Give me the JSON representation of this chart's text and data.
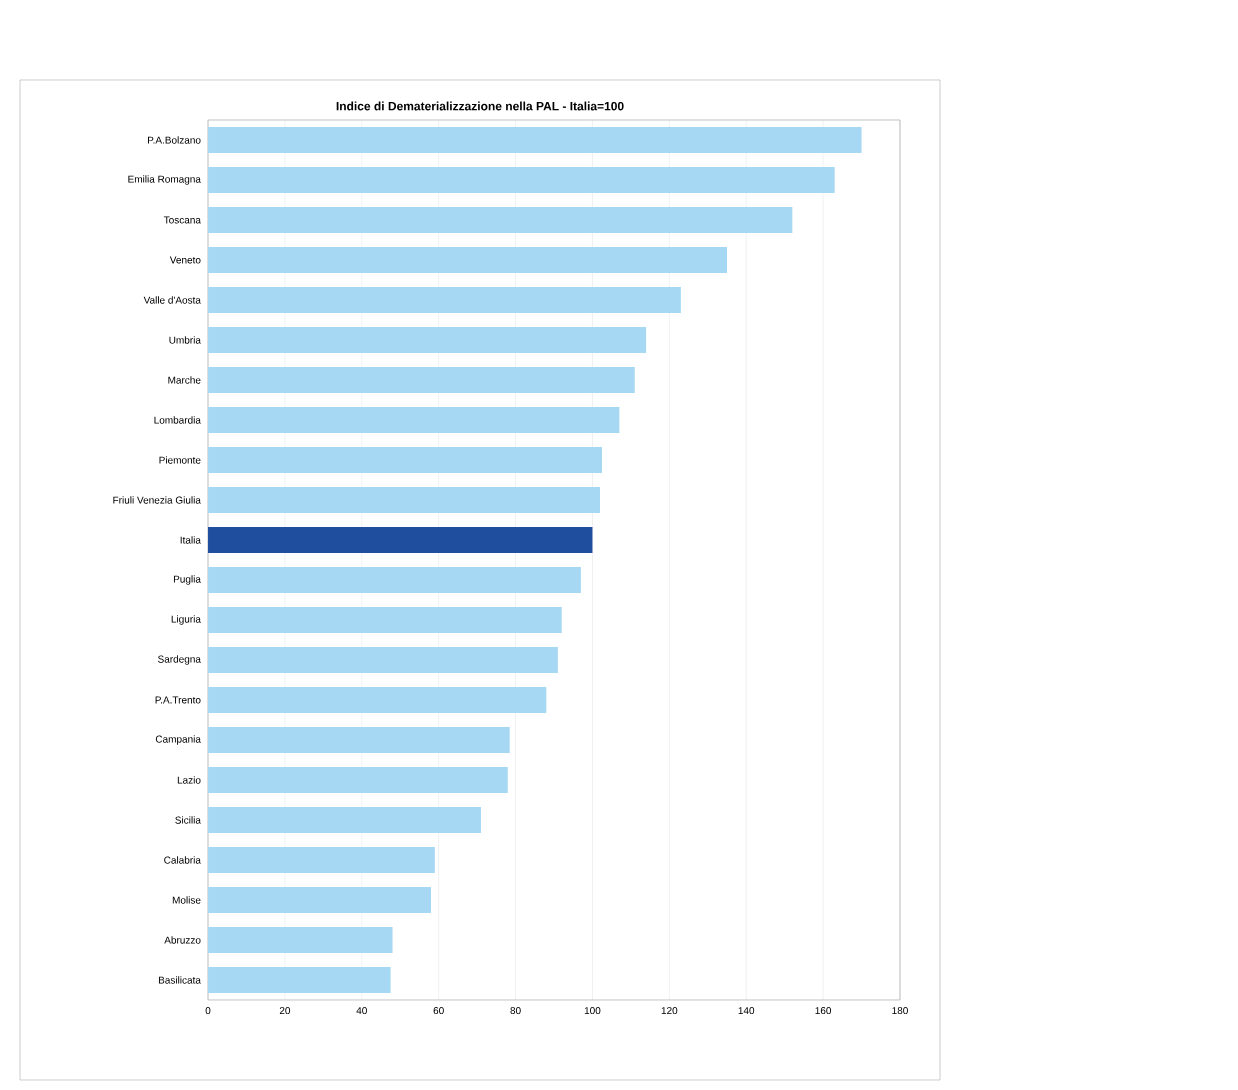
{
  "chart_data": {
    "type": "bar",
    "orientation": "horizontal",
    "title": "Indice di Dematerializzazione nella PAL - Italia=100",
    "categories": [
      "P.A.Bolzano",
      "Emilia Romagna",
      "Toscana",
      "Veneto",
      "Valle d'Aosta",
      "Umbria",
      "Marche",
      "Lombardia",
      "Piemonte",
      "Friuli Venezia Giulia",
      "Italia",
      "Puglia",
      "Liguria",
      "Sardegna",
      "P.A.Trento",
      "Campania",
      "Lazio",
      "Sicilia",
      "Calabria",
      "Molise",
      "Abruzzo",
      "Basilicata"
    ],
    "values": [
      170,
      163,
      152,
      135,
      123,
      114,
      111,
      107,
      102.5,
      102,
      100,
      97,
      92,
      91,
      88,
      78.5,
      78,
      71,
      59,
      58,
      48,
      47.5
    ],
    "colors": [
      "#a6d8f4",
      "#a6d8f4",
      "#a6d8f4",
      "#a6d8f4",
      "#a6d8f4",
      "#a6d8f4",
      "#a6d8f4",
      "#a6d8f4",
      "#a6d8f4",
      "#a6d8f4",
      "#1f4e9e",
      "#a6d8f4",
      "#a6d8f4",
      "#a6d8f4",
      "#a6d8f4",
      "#a6d8f4",
      "#a6d8f4",
      "#a6d8f4",
      "#a6d8f4",
      "#a6d8f4",
      "#a6d8f4",
      "#a6d8f4"
    ],
    "xlim": [
      0,
      180
    ],
    "xticks": [
      0,
      20,
      40,
      60,
      80,
      100,
      120,
      140,
      160,
      180
    ],
    "grid": "x"
  }
}
